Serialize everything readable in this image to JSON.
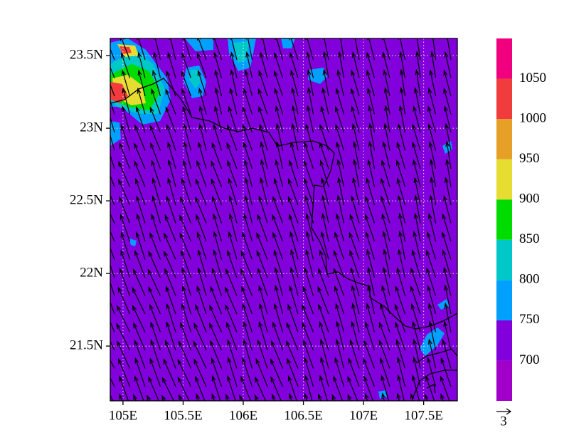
{
  "chart_data": {
    "type": "map",
    "xlim": [
      104.894,
      107.78
    ],
    "ylim": [
      21.123,
      23.618
    ],
    "xticks": [
      {
        "value": 105,
        "label": "105E"
      },
      {
        "value": 105.5,
        "label": "105.5E"
      },
      {
        "value": 106,
        "label": "106E"
      },
      {
        "value": 106.5,
        "label": "106.5E"
      },
      {
        "value": 107,
        "label": "107E"
      },
      {
        "value": 107.5,
        "label": "107.5E"
      }
    ],
    "yticks": [
      {
        "value": 21.5,
        "label": "21.5N"
      },
      {
        "value": 22,
        "label": "22N"
      },
      {
        "value": 22.5,
        "label": "22.5N"
      },
      {
        "value": 23,
        "label": "23N"
      },
      {
        "value": 23.5,
        "label": "23.5N"
      }
    ],
    "grid": true,
    "colorbar": {
      "levels": [
        700,
        750,
        800,
        850,
        900,
        950,
        1000,
        1050
      ],
      "colors": [
        "#a000c8",
        "#8200dc",
        "#00a0ff",
        "#00c8c8",
        "#00dc00",
        "#e6dc32",
        "#e6a028",
        "#f03c3c",
        "#f0007f"
      ]
    },
    "vector_reference": 3
  }
}
